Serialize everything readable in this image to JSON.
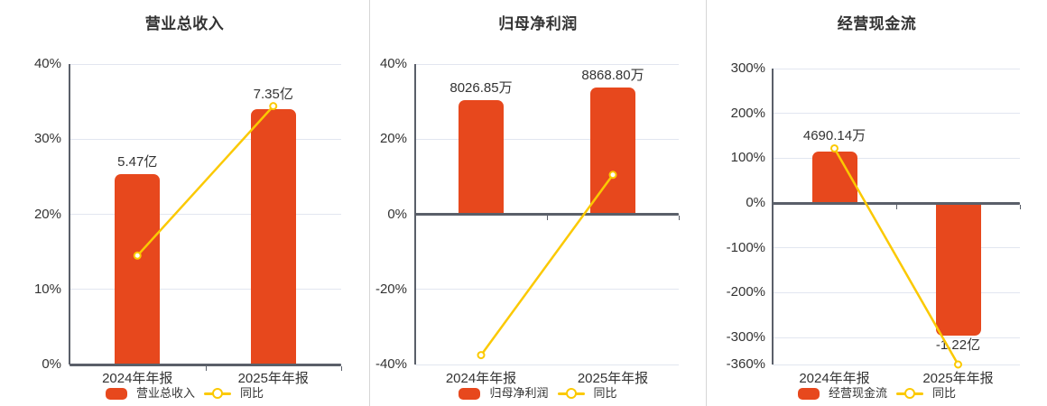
{
  "colors": {
    "bar": "#e7481d",
    "line": "#fbc902",
    "grid": "#e2e6f0",
    "axis": "#5a5f69",
    "text": "#333333",
    "divider": "#d6d6d6",
    "background": "#ffffff"
  },
  "chart_data": [
    {
      "type": "bar",
      "title": "营业总收入",
      "categories": [
        "2024年年报",
        "2025年年报"
      ],
      "series": [
        {
          "name": "营业总收入",
          "kind": "bar",
          "labels": [
            "5.47亿",
            "7.35亿"
          ],
          "bar_heights_axis_pct": [
            25.3,
            34.0
          ]
        },
        {
          "name": "同比",
          "kind": "line",
          "values_pct": [
            14.5,
            34.4
          ]
        }
      ],
      "y_ticks": [
        {
          "label": "40%",
          "value": 40
        },
        {
          "label": "30%",
          "value": 30
        },
        {
          "label": "20%",
          "value": 20
        },
        {
          "label": "10%",
          "value": 10
        },
        {
          "label": "0%",
          "value": 0
        }
      ],
      "ylim": [
        0,
        40
      ],
      "legend": [
        "营业总收入",
        "同比"
      ]
    },
    {
      "type": "bar",
      "title": "归母净利润",
      "categories": [
        "2024年年报",
        "2025年年报"
      ],
      "series": [
        {
          "name": "归母净利润",
          "kind": "bar",
          "labels": [
            "8026.85万",
            "8868.80万"
          ],
          "bar_heights_axis_pct": [
            30.5,
            33.7
          ]
        },
        {
          "name": "同比",
          "kind": "line",
          "values_pct": [
            -37.5,
            10.5
          ]
        }
      ],
      "y_ticks": [
        {
          "label": "40%",
          "value": 40
        },
        {
          "label": "20%",
          "value": 20
        },
        {
          "label": "0%",
          "value": 0
        },
        {
          "label": "-20%",
          "value": -20
        },
        {
          "label": "-40%",
          "value": -40
        }
      ],
      "ylim": [
        -40,
        40
      ],
      "legend": [
        "归母净利润",
        "同比"
      ]
    },
    {
      "type": "bar",
      "title": "经营现金流",
      "categories": [
        "2024年年报",
        "2025年年报"
      ],
      "series": [
        {
          "name": "经营现金流",
          "kind": "bar",
          "labels": [
            "4690.14万",
            "-1.22亿"
          ],
          "bar_heights_axis_pct": [
            114,
            -296.4
          ]
        },
        {
          "name": "同比",
          "kind": "line",
          "values_pct": [
            122,
            -360
          ]
        }
      ],
      "y_ticks": [
        {
          "label": "300%",
          "value": 300
        },
        {
          "label": "200%",
          "value": 200
        },
        {
          "label": "100%",
          "value": 100
        },
        {
          "label": "0%",
          "value": 0
        },
        {
          "label": "-100%",
          "value": -100
        },
        {
          "label": "-200%",
          "value": -200
        },
        {
          "label": "-300%",
          "value": -300
        },
        {
          "label": "-360%",
          "value": -360
        }
      ],
      "ylim": [
        -360,
        300
      ],
      "legend": [
        "经营现金流",
        "同比"
      ]
    }
  ]
}
